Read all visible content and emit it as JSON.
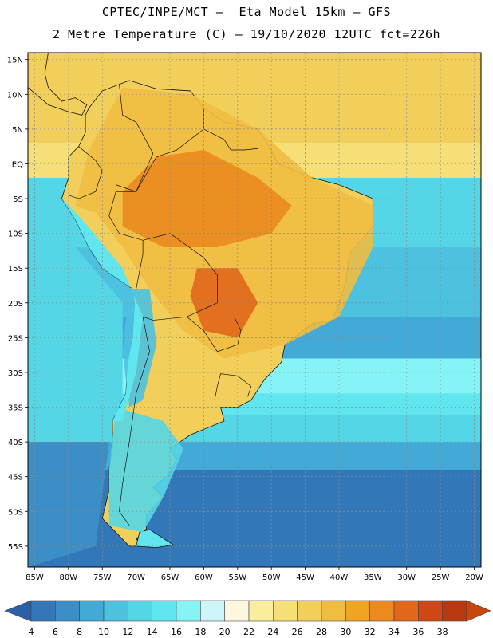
{
  "header": {
    "line1": "CPTEC/INPE/MCT –  Eta Model 15km – GFS",
    "line2": "2 Metre Temperature (C) – 19/10/2020 12UTC fct=226h"
  },
  "map": {
    "lon_range": [
      -86,
      -19
    ],
    "lat_range": [
      -58,
      16
    ],
    "lat_ticks": [
      {
        "value": 15,
        "label": "15N"
      },
      {
        "value": 10,
        "label": "10N"
      },
      {
        "value": 5,
        "label": "5N"
      },
      {
        "value": 0,
        "label": "EQ"
      },
      {
        "value": -5,
        "label": "5S"
      },
      {
        "value": -10,
        "label": "10S"
      },
      {
        "value": -15,
        "label": "15S"
      },
      {
        "value": -20,
        "label": "20S"
      },
      {
        "value": -25,
        "label": "25S"
      },
      {
        "value": -30,
        "label": "30S"
      },
      {
        "value": -35,
        "label": "35S"
      },
      {
        "value": -40,
        "label": "40S"
      },
      {
        "value": -45,
        "label": "45S"
      },
      {
        "value": -50,
        "label": "50S"
      },
      {
        "value": -55,
        "label": "55S"
      }
    ],
    "lon_ticks": [
      {
        "value": -85,
        "label": "85W"
      },
      {
        "value": -80,
        "label": "80W"
      },
      {
        "value": -75,
        "label": "75W"
      },
      {
        "value": -70,
        "label": "70W"
      },
      {
        "value": -65,
        "label": "65W"
      },
      {
        "value": -60,
        "label": "60W"
      },
      {
        "value": -55,
        "label": "55W"
      },
      {
        "value": -50,
        "label": "50W"
      },
      {
        "value": -45,
        "label": "45W"
      },
      {
        "value": -40,
        "label": "40W"
      },
      {
        "value": -35,
        "label": "35W"
      },
      {
        "value": -30,
        "label": "30W"
      },
      {
        "value": -25,
        "label": "25W"
      },
      {
        "value": -20,
        "label": "20W"
      }
    ]
  },
  "colorbar": {
    "labels": [
      "4",
      "6",
      "8",
      "10",
      "12",
      "14",
      "16",
      "18",
      "20",
      "22",
      "24",
      "26",
      "28",
      "30",
      "32",
      "34",
      "36",
      "38"
    ],
    "colors": [
      "#2b5fa8",
      "#3278b8",
      "#3b8fc6",
      "#43a9d6",
      "#4cc1e0",
      "#55d6e6",
      "#5fe6ee",
      "#86f3f6",
      "#cdf5fb",
      "#fdf7dd",
      "#f9ee9d",
      "#f6df77",
      "#f2cf5b",
      "#efbd41",
      "#efa521",
      "#eb8a1f",
      "#e0671c",
      "#ce4716",
      "#b8380f",
      "#c8450f"
    ]
  },
  "regions": [
    {
      "name": "warm-northeast",
      "color": "#efbd41",
      "poly": [
        [
          -79,
          -6
        ],
        [
          -77,
          2
        ],
        [
          -72,
          11
        ],
        [
          -62,
          10
        ],
        [
          -52,
          5
        ],
        [
          -44,
          -2
        ],
        [
          -35,
          -6
        ],
        [
          -35,
          -12
        ],
        [
          -40,
          -22
        ],
        [
          -48,
          -26
        ],
        [
          -57,
          -28
        ],
        [
          -63,
          -24
        ],
        [
          -68,
          -18
        ],
        [
          -72,
          -12
        ],
        [
          -76,
          -7
        ]
      ]
    },
    {
      "name": "amazon-hot",
      "color": "#eb8a1f",
      "poly": [
        [
          -72,
          -4
        ],
        [
          -67,
          1
        ],
        [
          -60,
          2
        ],
        [
          -52,
          -2
        ],
        [
          -47,
          -6
        ],
        [
          -50,
          -10
        ],
        [
          -58,
          -12
        ],
        [
          -66,
          -12
        ],
        [
          -72,
          -9
        ]
      ]
    },
    {
      "name": "chaco-hot",
      "color": "#e0671c",
      "poly": [
        [
          -61,
          -15
        ],
        [
          -55,
          -15
        ],
        [
          -52,
          -20
        ],
        [
          -55,
          -25
        ],
        [
          -60,
          -24
        ],
        [
          -62,
          -19
        ]
      ]
    },
    {
      "name": "andes-cool",
      "color": "#4cc1e0",
      "poly": [
        [
          -71,
          -18
        ],
        [
          -68,
          -18
        ],
        [
          -67,
          -26
        ],
        [
          -69,
          -34
        ],
        [
          -71,
          -35
        ],
        [
          -72,
          -27
        ]
      ]
    },
    {
      "name": "patagonia-cool",
      "color": "#55d6e6",
      "poly": [
        [
          -73,
          -35
        ],
        [
          -66,
          -37
        ],
        [
          -63,
          -41
        ],
        [
          -66,
          -48
        ],
        [
          -69,
          -53
        ],
        [
          -74,
          -52
        ],
        [
          -74,
          -44
        ]
      ]
    }
  ]
}
